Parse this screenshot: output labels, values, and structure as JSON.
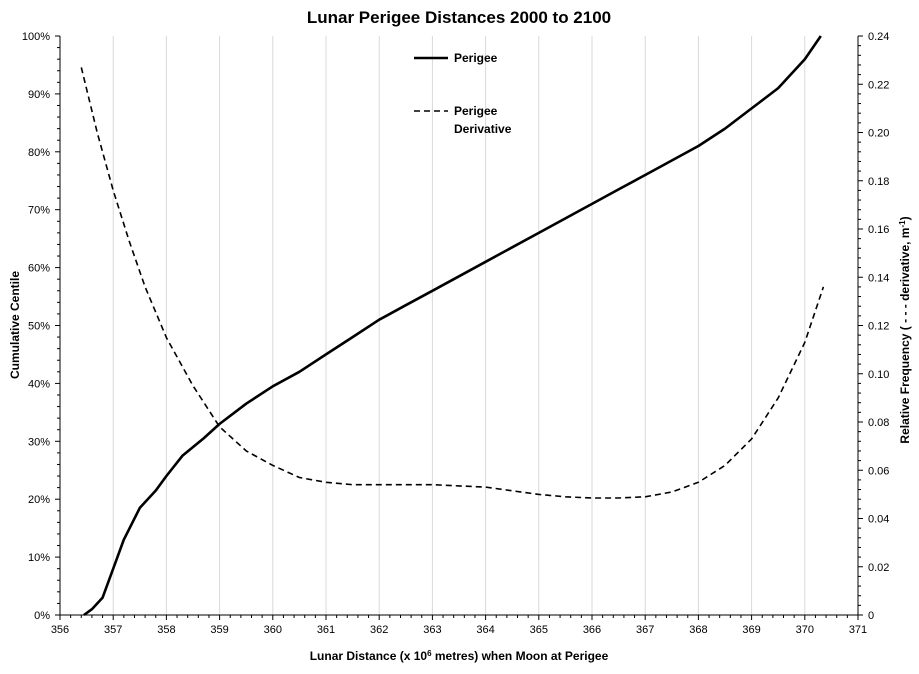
{
  "chart_data": {
    "type": "line",
    "title": "Lunar Perigee Distances 2000 to 2100",
    "xlabel": {
      "prefix": "Lunar Distance (x 10",
      "sup": "6",
      "suffix": " metres) when Moon at Perigee"
    },
    "ylabel_left": "Cumulative Centile",
    "ylabel_right": {
      "prefix": "Relative Frequency ( - - - derivative, m",
      "sup": "-1",
      "suffix": ")"
    },
    "xlim": [
      356,
      371
    ],
    "ylim_left": [
      0,
      100
    ],
    "ylim_right": [
      0,
      0.24
    ],
    "x_ticks": [
      "356",
      "357",
      "358",
      "359",
      "360",
      "361",
      "362",
      "363",
      "364",
      "365",
      "366",
      "367",
      "368",
      "369",
      "370",
      "371"
    ],
    "y_left_ticks": [
      "0%",
      "10%",
      "20%",
      "30%",
      "40%",
      "50%",
      "60%",
      "70%",
      "80%",
      "90%",
      "100%"
    ],
    "y_right_ticks": [
      "0",
      "0.02",
      "0.04",
      "0.06",
      "0.08",
      "0.10",
      "0.12",
      "0.14",
      "0.16",
      "0.18",
      "0.20",
      "0.22",
      "0.24"
    ],
    "grid": "vertical",
    "legend_position": "top-center",
    "series": [
      {
        "name": "Perigee",
        "axis": "left",
        "style": "solid",
        "color": "#000000",
        "x": [
          356.45,
          356.6,
          356.8,
          357.0,
          357.2,
          357.5,
          357.8,
          358.0,
          358.3,
          358.7,
          359.0,
          359.5,
          360.0,
          360.5,
          361.0,
          361.5,
          362.0,
          362.5,
          363.0,
          363.5,
          364.0,
          364.5,
          365.0,
          365.5,
          366.0,
          366.5,
          367.0,
          367.5,
          368.0,
          368.5,
          369.0,
          369.5,
          370.0,
          370.3
        ],
        "y": [
          0,
          1,
          3,
          8,
          13,
          18.5,
          21.5,
          24,
          27.5,
          30.5,
          33,
          36.5,
          39.5,
          42,
          45,
          48,
          51,
          53.5,
          56,
          58.5,
          61,
          63.5,
          66,
          68.5,
          71,
          73.5,
          76,
          78.5,
          81,
          84,
          87.5,
          91,
          96,
          100
        ]
      },
      {
        "name": "Perigee Derivative",
        "axis": "right",
        "style": "dashed",
        "color": "#000000",
        "x": [
          356.4,
          356.7,
          357.0,
          357.3,
          357.6,
          358.0,
          358.5,
          359.0,
          359.5,
          360.0,
          360.5,
          361.0,
          361.5,
          362.0,
          362.5,
          363.0,
          363.5,
          364.0,
          364.5,
          365.0,
          365.5,
          366.0,
          366.5,
          367.0,
          367.5,
          368.0,
          368.5,
          369.0,
          369.5,
          370.0,
          370.35
        ],
        "y": [
          0.227,
          0.2,
          0.176,
          0.155,
          0.136,
          0.115,
          0.095,
          0.078,
          0.068,
          0.062,
          0.057,
          0.055,
          0.054,
          0.054,
          0.054,
          0.054,
          0.0535,
          0.053,
          0.0515,
          0.05,
          0.049,
          0.0485,
          0.0485,
          0.049,
          0.051,
          0.055,
          0.062,
          0.073,
          0.09,
          0.113,
          0.136
        ]
      }
    ],
    "legend": [
      {
        "line1": "Perigee",
        "line2": "",
        "style": "solid"
      },
      {
        "line1": "Perigee",
        "line2": "Derivative",
        "style": "dashed"
      }
    ]
  }
}
